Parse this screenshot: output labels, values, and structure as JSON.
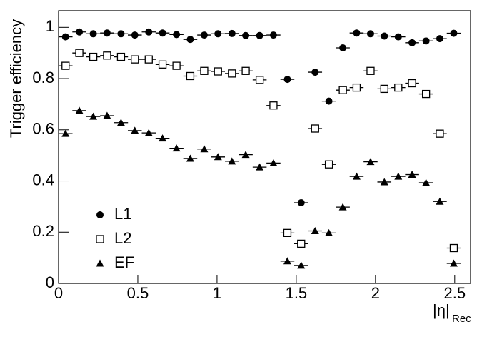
{
  "chart_data": {
    "type": "scatter",
    "ylabel": "Trigger efficiency",
    "xlabel": "|η|",
    "xlabel_sub": "Rec",
    "x": [
      0.044,
      0.131,
      0.219,
      0.306,
      0.394,
      0.481,
      0.569,
      0.656,
      0.744,
      0.831,
      0.919,
      1.006,
      1.094,
      1.181,
      1.269,
      1.356,
      1.444,
      1.531,
      1.619,
      1.706,
      1.794,
      1.881,
      1.969,
      2.056,
      2.144,
      2.231,
      2.319,
      2.406,
      2.494
    ],
    "xerr": 0.044,
    "series": [
      {
        "name": "L1",
        "color": "#000000",
        "marker": "circle",
        "values": [
          0.963,
          0.982,
          0.975,
          0.978,
          0.975,
          0.97,
          0.982,
          0.978,
          0.972,
          0.953,
          0.97,
          0.975,
          0.976,
          0.968,
          0.968,
          0.97,
          0.797,
          0.315,
          0.825,
          0.712,
          0.92,
          0.978,
          0.975,
          0.966,
          0.963,
          0.94,
          0.947,
          0.956,
          0.977
        ]
      },
      {
        "name": "L2",
        "color": "#000000",
        "marker": "open-square",
        "values": [
          0.85,
          0.9,
          0.885,
          0.89,
          0.885,
          0.875,
          0.875,
          0.855,
          0.85,
          0.81,
          0.83,
          0.828,
          0.82,
          0.83,
          0.795,
          0.695,
          0.197,
          0.155,
          0.605,
          0.465,
          0.755,
          0.765,
          0.83,
          0.76,
          0.765,
          0.782,
          0.74,
          0.585,
          0.138
        ]
      },
      {
        "name": "EF",
        "color": "#000000",
        "marker": "triangle",
        "values": [
          0.585,
          0.675,
          0.652,
          0.655,
          0.628,
          0.597,
          0.588,
          0.567,
          0.528,
          0.488,
          0.525,
          0.494,
          0.477,
          0.503,
          0.454,
          0.47,
          0.087,
          0.07,
          0.205,
          0.197,
          0.298,
          0.418,
          0.475,
          0.396,
          0.418,
          0.425,
          0.393,
          0.32,
          0.078
        ]
      }
    ],
    "xlim": [
      0,
      2.6
    ],
    "ylim": [
      0,
      1.065
    ],
    "xticks": [
      0,
      0.5,
      1,
      1.5,
      2,
      2.5
    ],
    "yticks": [
      0,
      0.2,
      0.4,
      0.6,
      0.8,
      1
    ],
    "grid": false,
    "legend": "lower-left"
  }
}
